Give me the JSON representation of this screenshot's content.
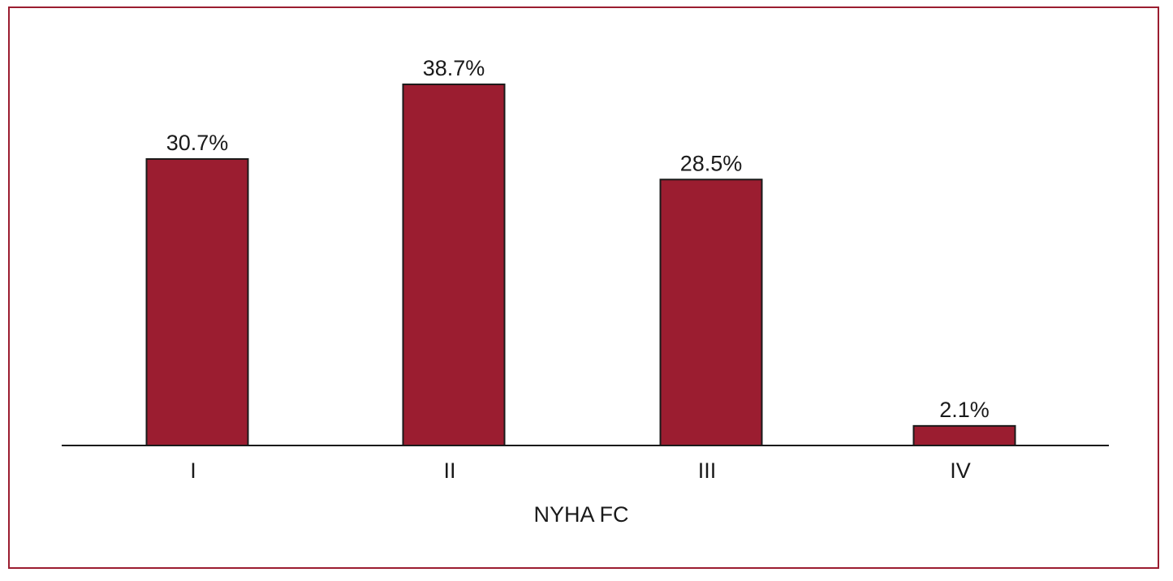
{
  "colors": {
    "frame": "#9b1d30",
    "bar": "#9b1d30",
    "bar_outline": "#1a1a1a",
    "axis": "#1a1a1a"
  },
  "chart_data": {
    "type": "bar",
    "categories": [
      "I",
      "II",
      "III",
      "IV"
    ],
    "values": [
      30.7,
      38.7,
      28.5,
      2.1
    ],
    "data_labels": [
      "30.7%",
      "38.7%",
      "28.5%",
      "2.1%"
    ],
    "title": "",
    "xlabel": "NYHA FC",
    "ylabel": "",
    "ylim": [
      0,
      40
    ],
    "grid": false,
    "legend": "none"
  }
}
